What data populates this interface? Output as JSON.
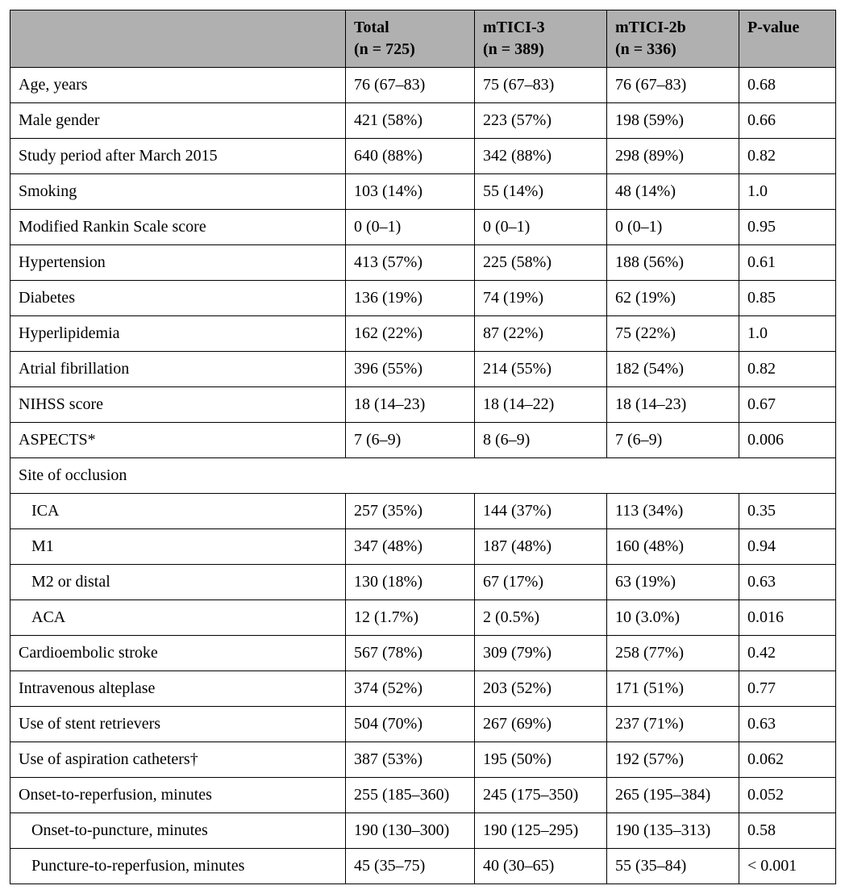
{
  "columns": [
    {
      "line1": "",
      "line2": ""
    },
    {
      "line1": "Total",
      "line2": "(n = 725)"
    },
    {
      "line1": "mTICI-3",
      "line2": "(n = 389)"
    },
    {
      "line1": "mTICI-2b",
      "line2": "(n = 336)"
    },
    {
      "line1": "P-value",
      "line2": ""
    }
  ],
  "rows": [
    {
      "type": "data",
      "label": "Age, years",
      "indent": 0,
      "cells": [
        "76 (67–83)",
        "75 (67–83)",
        "76 (67–83)",
        "0.68"
      ]
    },
    {
      "type": "data",
      "label": "Male gender",
      "indent": 0,
      "cells": [
        "421 (58%)",
        "223 (57%)",
        "198 (59%)",
        "0.66"
      ]
    },
    {
      "type": "data",
      "label": "Study period after March 2015",
      "indent": 0,
      "cells": [
        "640 (88%)",
        "342 (88%)",
        "298 (89%)",
        "0.82"
      ]
    },
    {
      "type": "data",
      "label": "Smoking",
      "indent": 0,
      "cells": [
        "103 (14%)",
        "55 (14%)",
        "48 (14%)",
        "1.0"
      ]
    },
    {
      "type": "data",
      "label": "Modified Rankin Scale score",
      "indent": 0,
      "cells": [
        "0 (0–1)",
        "0 (0–1)",
        "0 (0–1)",
        "0.95"
      ]
    },
    {
      "type": "data",
      "label": "Hypertension",
      "indent": 0,
      "cells": [
        "413 (57%)",
        "225 (58%)",
        "188 (56%)",
        "0.61"
      ]
    },
    {
      "type": "data",
      "label": "Diabetes",
      "indent": 0,
      "cells": [
        "136 (19%)",
        "74 (19%)",
        "62 (19%)",
        "0.85"
      ]
    },
    {
      "type": "data",
      "label": "Hyperlipidemia",
      "indent": 0,
      "cells": [
        "162 (22%)",
        "87 (22%)",
        "75 (22%)",
        "1.0"
      ]
    },
    {
      "type": "data",
      "label": "Atrial fibrillation",
      "indent": 0,
      "cells": [
        "396 (55%)",
        "214 (55%)",
        "182 (54%)",
        "0.82"
      ]
    },
    {
      "type": "data",
      "label": "NIHSS score",
      "indent": 0,
      "cells": [
        "18 (14–23)",
        "18 (14–22)",
        "18 (14–23)",
        "0.67"
      ]
    },
    {
      "type": "data",
      "label": "ASPECTS*",
      "indent": 0,
      "cells": [
        "7 (6–9)",
        "8 (6–9)",
        "7 (6–9)",
        "0.006"
      ]
    },
    {
      "type": "section",
      "label": "Site of occlusion"
    },
    {
      "type": "data",
      "label": "ICA",
      "indent": 1,
      "cells": [
        "257 (35%)",
        "144 (37%)",
        "113 (34%)",
        "0.35"
      ]
    },
    {
      "type": "data",
      "label": "M1",
      "indent": 1,
      "cells": [
        "347 (48%)",
        "187 (48%)",
        "160 (48%)",
        "0.94"
      ]
    },
    {
      "type": "data",
      "label": "M2 or distal",
      "indent": 1,
      "cells": [
        "130 (18%)",
        "67 (17%)",
        "63 (19%)",
        "0.63"
      ]
    },
    {
      "type": "data",
      "label": "ACA",
      "indent": 1,
      "cells": [
        "12 (1.7%)",
        "2 (0.5%)",
        "10 (3.0%)",
        "0.016"
      ]
    },
    {
      "type": "data",
      "label": "Cardioembolic stroke",
      "indent": 0,
      "cells": [
        "567 (78%)",
        "309 (79%)",
        "258 (77%)",
        "0.42"
      ]
    },
    {
      "type": "data",
      "label": "Intravenous alteplase",
      "indent": 0,
      "cells": [
        "374 (52%)",
        "203 (52%)",
        "171 (51%)",
        "0.77"
      ]
    },
    {
      "type": "data",
      "label": "Use of stent retrievers",
      "indent": 0,
      "cells": [
        "504 (70%)",
        "267 (69%)",
        "237 (71%)",
        "0.63"
      ]
    },
    {
      "type": "data",
      "label": "Use of aspiration catheters†",
      "indent": 0,
      "cells": [
        "387 (53%)",
        "195 (50%)",
        "192 (57%)",
        "0.062"
      ]
    },
    {
      "type": "data",
      "label": "Onset-to-reperfusion, minutes",
      "indent": 0,
      "cells": [
        "255 (185–360)",
        "245 (175–350)",
        "265 (195–384)",
        "0.052"
      ]
    },
    {
      "type": "data",
      "label": "Onset-to-puncture, minutes",
      "indent": 1,
      "cells": [
        "190 (130–300)",
        "190 (125–295)",
        "190 (135–313)",
        "0.58"
      ]
    },
    {
      "type": "data",
      "label": "Puncture-to-reperfusion, minutes",
      "indent": 1,
      "cells": [
        "45 (35–75)",
        "40 (30–65)",
        "55 (35–84)",
        "< 0.001"
      ]
    }
  ]
}
